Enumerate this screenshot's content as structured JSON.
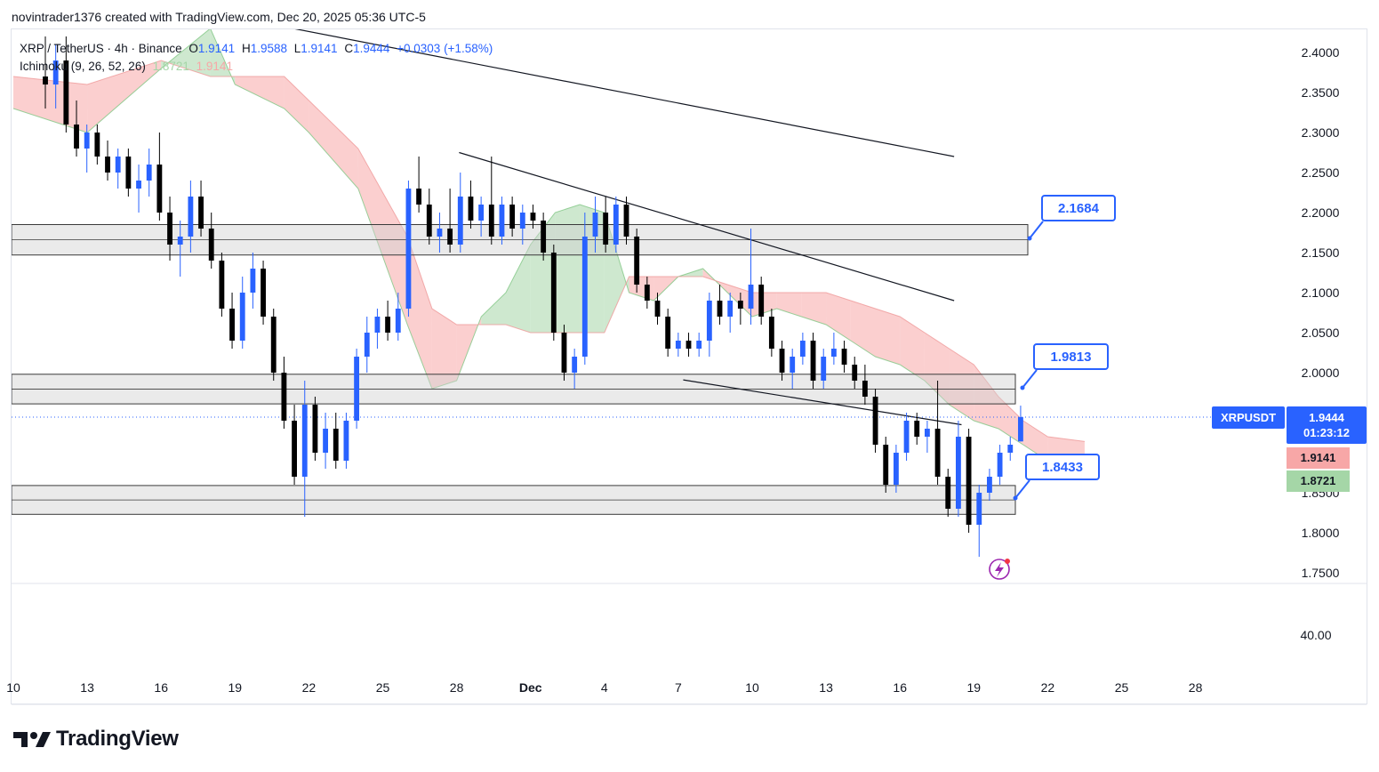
{
  "header": {
    "caption": "novintrader1376 created with TradingView.com, Dec 20, 2025 05:36 UTC-5"
  },
  "legend": {
    "symbol": "XRP / TetherUS · 4h · Binance",
    "o_label": "O",
    "o": "1.9141",
    "h_label": "H",
    "h": "1.9588",
    "l_label": "L",
    "l": "1.9141",
    "c_label": "C",
    "c": "1.9444",
    "change": "+0.0303 (+1.58%)",
    "indicator": "Ichimoku (9, 26, 52, 26)",
    "span_a": "1.8721",
    "span_b": "1.9141"
  },
  "price_tags": {
    "symbol": "XRPUSDT",
    "last_price": "1.9444",
    "countdown": "01:23:12",
    "span_b_value": "1.9141",
    "span_a_value": "1.8721"
  },
  "callouts": [
    "2.1684",
    "1.9813",
    "1.8433"
  ],
  "footer": {
    "brand": "TradingView"
  },
  "colors": {
    "up": "#2962ff",
    "down": "#000000",
    "cloud_bull": "#a5d6a7",
    "cloud_bear": "#f7a7a7",
    "zone": "#d1d1d1",
    "accent": "#2962ff"
  },
  "chart_data": {
    "type": "candlestick",
    "title": "XRP / TetherUS · 4h · Binance",
    "ylim": [
      1.73,
      2.43
    ],
    "y_ticks": [
      "2.4000",
      "2.3500",
      "2.3000",
      "2.2500",
      "2.2000",
      "2.1500",
      "2.1000",
      "2.0500",
      "2.0000",
      "1.8500",
      "1.8000",
      "1.7500"
    ],
    "y_tick_values": [
      2.4,
      2.35,
      2.3,
      2.25,
      2.2,
      2.15,
      2.1,
      2.05,
      2.0,
      1.85,
      1.8,
      1.75
    ],
    "x_ticks": [
      "10",
      "13",
      "16",
      "19",
      "22",
      "25",
      "28",
      "Dec",
      "4",
      "7",
      "10",
      "13",
      "16",
      "19",
      "22",
      "25",
      "28"
    ],
    "x_tick_days": [
      0,
      3,
      6,
      9,
      12,
      15,
      18,
      21,
      24,
      27,
      30,
      33,
      36,
      39,
      42,
      45,
      48
    ],
    "oscillator_label": "40.00",
    "zones": [
      {
        "from": 2.147,
        "to": 2.185,
        "label": "2.1684"
      },
      {
        "from": 1.961,
        "to": 1.998,
        "label": "1.9813"
      },
      {
        "from": 1.823,
        "to": 1.859,
        "label": "1.8433"
      }
    ],
    "trendlines": [
      {
        "x1": 8,
        "y1": 2.45,
        "x2": 38.2,
        "y2": 2.27
      },
      {
        "x1": 18.1,
        "y1": 2.275,
        "x2": 38.2,
        "y2": 2.09
      },
      {
        "x1": 27.2,
        "y1": 1.991,
        "x2": 38.5,
        "y2": 1.935
      }
    ],
    "last_price": 1.9444,
    "cloud": {
      "x": [
        0,
        3,
        6,
        8,
        9,
        11,
        12,
        14,
        16,
        17,
        18,
        19,
        20,
        21,
        22,
        23,
        24,
        25,
        26,
        27,
        28,
        29,
        30,
        31,
        32,
        33,
        34,
        35,
        36,
        37,
        38,
        39,
        40,
        41,
        42,
        43.5
      ],
      "span_a": [
        2.33,
        2.3,
        2.38,
        2.43,
        2.36,
        2.33,
        2.3,
        2.23,
        2.06,
        1.98,
        1.99,
        2.07,
        2.1,
        2.16,
        2.2,
        2.21,
        2.2,
        2.1,
        2.09,
        2.12,
        2.13,
        2.1,
        2.07,
        2.08,
        2.07,
        2.06,
        2.04,
        2.02,
        2.01,
        1.99,
        1.96,
        1.94,
        1.93,
        1.91,
        1.89,
        1.872
      ],
      "span_b": [
        2.37,
        2.36,
        2.39,
        2.37,
        2.37,
        2.37,
        2.34,
        2.28,
        2.17,
        2.08,
        2.06,
        2.06,
        2.06,
        2.05,
        2.05,
        2.05,
        2.05,
        2.12,
        2.12,
        2.12,
        2.12,
        2.11,
        2.1,
        2.1,
        2.1,
        2.1,
        2.09,
        2.08,
        2.07,
        2.05,
        2.03,
        2.01,
        1.97,
        1.94,
        1.92,
        1.914
      ]
    },
    "candles": [
      {
        "o": 2.37,
        "h": 2.42,
        "l": 2.33,
        "c": 2.36
      },
      {
        "o": 2.36,
        "h": 2.41,
        "l": 2.33,
        "c": 2.39
      },
      {
        "o": 2.39,
        "h": 2.42,
        "l": 2.3,
        "c": 2.31
      },
      {
        "o": 2.31,
        "h": 2.34,
        "l": 2.27,
        "c": 2.28
      },
      {
        "o": 2.28,
        "h": 2.31,
        "l": 2.25,
        "c": 2.3
      },
      {
        "o": 2.3,
        "h": 2.31,
        "l": 2.26,
        "c": 2.27
      },
      {
        "o": 2.27,
        "h": 2.29,
        "l": 2.24,
        "c": 2.25
      },
      {
        "o": 2.25,
        "h": 2.28,
        "l": 2.23,
        "c": 2.27
      },
      {
        "o": 2.27,
        "h": 2.28,
        "l": 2.22,
        "c": 2.23
      },
      {
        "o": 2.23,
        "h": 2.26,
        "l": 2.2,
        "c": 2.24
      },
      {
        "o": 2.24,
        "h": 2.28,
        "l": 2.22,
        "c": 2.26
      },
      {
        "o": 2.26,
        "h": 2.3,
        "l": 2.19,
        "c": 2.2
      },
      {
        "o": 2.2,
        "h": 2.22,
        "l": 2.14,
        "c": 2.16
      },
      {
        "o": 2.16,
        "h": 2.19,
        "l": 2.12,
        "c": 2.17
      },
      {
        "o": 2.17,
        "h": 2.24,
        "l": 2.15,
        "c": 2.22
      },
      {
        "o": 2.22,
        "h": 2.24,
        "l": 2.17,
        "c": 2.18
      },
      {
        "o": 2.18,
        "h": 2.2,
        "l": 2.13,
        "c": 2.14
      },
      {
        "o": 2.14,
        "h": 2.15,
        "l": 2.07,
        "c": 2.08
      },
      {
        "o": 2.08,
        "h": 2.1,
        "l": 2.03,
        "c": 2.04
      },
      {
        "o": 2.04,
        "h": 2.12,
        "l": 2.03,
        "c": 2.1
      },
      {
        "o": 2.1,
        "h": 2.15,
        "l": 2.08,
        "c": 2.13
      },
      {
        "o": 2.13,
        "h": 2.14,
        "l": 2.06,
        "c": 2.07
      },
      {
        "o": 2.07,
        "h": 2.08,
        "l": 1.99,
        "c": 2.0
      },
      {
        "o": 2.0,
        "h": 2.02,
        "l": 1.93,
        "c": 1.94
      },
      {
        "o": 1.94,
        "h": 1.96,
        "l": 1.86,
        "c": 1.87
      },
      {
        "o": 1.87,
        "h": 1.99,
        "l": 1.82,
        "c": 1.96
      },
      {
        "o": 1.96,
        "h": 1.97,
        "l": 1.89,
        "c": 1.9
      },
      {
        "o": 1.9,
        "h": 1.95,
        "l": 1.88,
        "c": 1.93
      },
      {
        "o": 1.93,
        "h": 1.95,
        "l": 1.88,
        "c": 1.89
      },
      {
        "o": 1.89,
        "h": 1.95,
        "l": 1.88,
        "c": 1.94
      },
      {
        "o": 1.94,
        "h": 2.03,
        "l": 1.93,
        "c": 2.02
      },
      {
        "o": 2.02,
        "h": 2.07,
        "l": 2.0,
        "c": 2.05
      },
      {
        "o": 2.05,
        "h": 2.08,
        "l": 2.03,
        "c": 2.07
      },
      {
        "o": 2.07,
        "h": 2.09,
        "l": 2.04,
        "c": 2.05
      },
      {
        "o": 2.05,
        "h": 2.1,
        "l": 2.04,
        "c": 2.08
      },
      {
        "o": 2.08,
        "h": 2.24,
        "l": 2.07,
        "c": 2.23
      },
      {
        "o": 2.23,
        "h": 2.27,
        "l": 2.2,
        "c": 2.21
      },
      {
        "o": 2.21,
        "h": 2.23,
        "l": 2.16,
        "c": 2.17
      },
      {
        "o": 2.17,
        "h": 2.2,
        "l": 2.15,
        "c": 2.18
      },
      {
        "o": 2.18,
        "h": 2.23,
        "l": 2.15,
        "c": 2.16
      },
      {
        "o": 2.16,
        "h": 2.25,
        "l": 2.15,
        "c": 2.22
      },
      {
        "o": 2.22,
        "h": 2.24,
        "l": 2.18,
        "c": 2.19
      },
      {
        "o": 2.19,
        "h": 2.22,
        "l": 2.17,
        "c": 2.21
      },
      {
        "o": 2.21,
        "h": 2.27,
        "l": 2.16,
        "c": 2.17
      },
      {
        "o": 2.17,
        "h": 2.22,
        "l": 2.16,
        "c": 2.21
      },
      {
        "o": 2.21,
        "h": 2.22,
        "l": 2.17,
        "c": 2.18
      },
      {
        "o": 2.18,
        "h": 2.21,
        "l": 2.16,
        "c": 2.2
      },
      {
        "o": 2.2,
        "h": 2.21,
        "l": 2.18,
        "c": 2.19
      },
      {
        "o": 2.19,
        "h": 2.2,
        "l": 2.14,
        "c": 2.15
      },
      {
        "o": 2.15,
        "h": 2.16,
        "l": 2.04,
        "c": 2.05
      },
      {
        "o": 2.05,
        "h": 2.06,
        "l": 1.99,
        "c": 2.0
      },
      {
        "o": 2.0,
        "h": 2.03,
        "l": 1.98,
        "c": 2.02
      },
      {
        "o": 2.02,
        "h": 2.2,
        "l": 2.01,
        "c": 2.17
      },
      {
        "o": 2.17,
        "h": 2.22,
        "l": 2.15,
        "c": 2.2
      },
      {
        "o": 2.2,
        "h": 2.22,
        "l": 2.15,
        "c": 2.16
      },
      {
        "o": 2.16,
        "h": 2.22,
        "l": 2.15,
        "c": 2.21
      },
      {
        "o": 2.21,
        "h": 2.22,
        "l": 2.16,
        "c": 2.17
      },
      {
        "o": 2.17,
        "h": 2.18,
        "l": 2.1,
        "c": 2.11
      },
      {
        "o": 2.11,
        "h": 2.12,
        "l": 2.08,
        "c": 2.09
      },
      {
        "o": 2.09,
        "h": 2.1,
        "l": 2.06,
        "c": 2.07
      },
      {
        "o": 2.07,
        "h": 2.08,
        "l": 2.02,
        "c": 2.03
      },
      {
        "o": 2.03,
        "h": 2.05,
        "l": 2.02,
        "c": 2.04
      },
      {
        "o": 2.04,
        "h": 2.05,
        "l": 2.02,
        "c": 2.03
      },
      {
        "o": 2.03,
        "h": 2.05,
        "l": 2.02,
        "c": 2.04
      },
      {
        "o": 2.04,
        "h": 2.1,
        "l": 2.02,
        "c": 2.09
      },
      {
        "o": 2.09,
        "h": 2.11,
        "l": 2.06,
        "c": 2.07
      },
      {
        "o": 2.07,
        "h": 2.1,
        "l": 2.05,
        "c": 2.09
      },
      {
        "o": 2.09,
        "h": 2.1,
        "l": 2.06,
        "c": 2.08
      },
      {
        "o": 2.08,
        "h": 2.18,
        "l": 2.06,
        "c": 2.11
      },
      {
        "o": 2.11,
        "h": 2.12,
        "l": 2.06,
        "c": 2.07
      },
      {
        "o": 2.07,
        "h": 2.08,
        "l": 2.02,
        "c": 2.03
      },
      {
        "o": 2.03,
        "h": 2.04,
        "l": 1.99,
        "c": 2.0
      },
      {
        "o": 2.0,
        "h": 2.03,
        "l": 1.98,
        "c": 2.02
      },
      {
        "o": 2.02,
        "h": 2.05,
        "l": 2.01,
        "c": 2.04
      },
      {
        "o": 2.04,
        "h": 2.05,
        "l": 1.98,
        "c": 1.99
      },
      {
        "o": 1.99,
        "h": 2.03,
        "l": 1.98,
        "c": 2.02
      },
      {
        "o": 2.02,
        "h": 2.05,
        "l": 2.01,
        "c": 2.03
      },
      {
        "o": 2.03,
        "h": 2.04,
        "l": 2.0,
        "c": 2.01
      },
      {
        "o": 2.01,
        "h": 2.02,
        "l": 1.98,
        "c": 1.99
      },
      {
        "o": 1.99,
        "h": 2.01,
        "l": 1.96,
        "c": 1.97
      },
      {
        "o": 1.97,
        "h": 1.98,
        "l": 1.9,
        "c": 1.91
      },
      {
        "o": 1.91,
        "h": 1.92,
        "l": 1.85,
        "c": 1.86
      },
      {
        "o": 1.86,
        "h": 1.91,
        "l": 1.85,
        "c": 1.9
      },
      {
        "o": 1.9,
        "h": 1.95,
        "l": 1.89,
        "c": 1.94
      },
      {
        "o": 1.94,
        "h": 1.95,
        "l": 1.91,
        "c": 1.92
      },
      {
        "o": 1.92,
        "h": 1.94,
        "l": 1.9,
        "c": 1.93
      },
      {
        "o": 1.93,
        "h": 1.99,
        "l": 1.86,
        "c": 1.87
      },
      {
        "o": 1.87,
        "h": 1.88,
        "l": 1.82,
        "c": 1.83
      },
      {
        "o": 1.83,
        "h": 1.94,
        "l": 1.82,
        "c": 1.92
      },
      {
        "o": 1.92,
        "h": 1.93,
        "l": 1.8,
        "c": 1.81
      },
      {
        "o": 1.81,
        "h": 1.86,
        "l": 1.77,
        "c": 1.85
      },
      {
        "o": 1.85,
        "h": 1.88,
        "l": 1.84,
        "c": 1.87
      },
      {
        "o": 1.87,
        "h": 1.91,
        "l": 1.86,
        "c": 1.9
      },
      {
        "o": 1.9,
        "h": 1.92,
        "l": 1.89,
        "c": 1.91
      },
      {
        "o": 1.9141,
        "h": 1.9588,
        "l": 1.9141,
        "c": 1.9444
      }
    ]
  }
}
